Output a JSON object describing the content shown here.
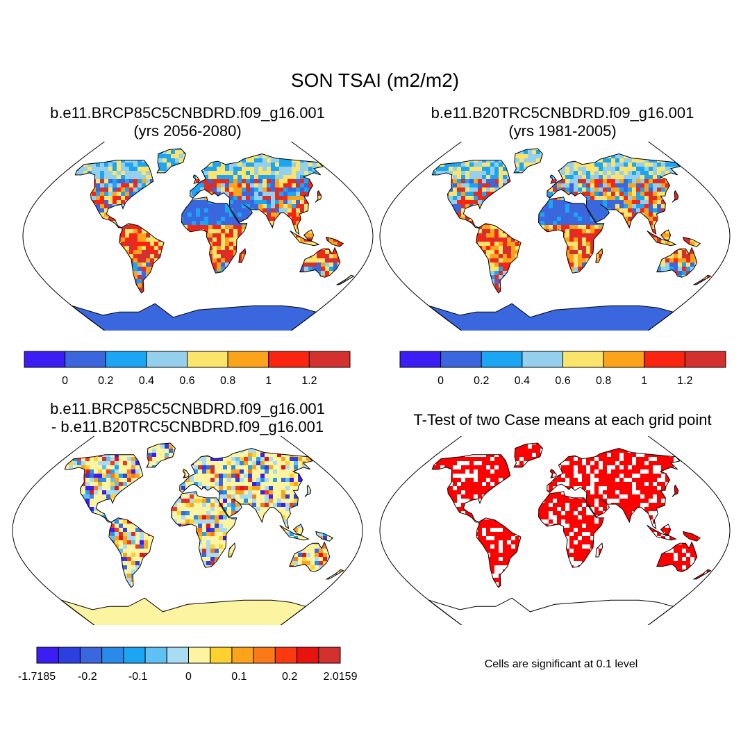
{
  "figure": {
    "title": "SON TSAI (m2/m2)"
  },
  "panels": [
    {
      "id": "case",
      "title_line1": "b.e11.BRCP85C5CNBDRD.f09_g16.001",
      "title_line2": "(yrs 2056-2080)",
      "style": "field"
    },
    {
      "id": "control",
      "title_line1": "b.e11.B20TRC5CNBDRD.f09_g16.001",
      "title_line2": "(yrs 1981-2005)",
      "style": "field"
    },
    {
      "id": "difference",
      "title_line1": "b.e11.BRCP85C5CNBDRD.f09_g16.001",
      "title_line2": "- b.e11.B20TRC5CNBDRD.f09_g16.001",
      "style": "diff"
    },
    {
      "id": "ttest",
      "title_line1": "T-Test of two Case means at each grid point",
      "title_line2": "",
      "style": "sig",
      "note": "Cells are significant at 0.1 level"
    }
  ],
  "colorbars": {
    "field": {
      "colors": [
        "#3c1ef5",
        "#3a67dd",
        "#1ba5f3",
        "#94d0ee",
        "#fbe46b",
        "#fba31b",
        "#fb2411",
        "#d3302e"
      ],
      "labels": [
        "0",
        "0.2",
        "0.4",
        "0.6",
        "0.8",
        "1",
        "1.2"
      ]
    },
    "diff": {
      "colors": [
        "#3c1ef5",
        "#2c3fe0",
        "#3a67dd",
        "#2a8ae9",
        "#1ba5f3",
        "#5ec0f3",
        "#a9dbf3",
        "#fdf4a2",
        "#fdd22e",
        "#fba31b",
        "#fb7a18",
        "#fb3a12",
        "#e8120f",
        "#d3302e"
      ],
      "labels": [
        "-1.7185",
        "-0.2",
        "-0.1",
        "0",
        "0.1",
        "0.2",
        "2.0159"
      ]
    }
  },
  "colors": {
    "ocean": "#ffffff",
    "coastline": "#000000",
    "significant": "#ff0000",
    "antarctica_field": "#3a67dd",
    "antarctica_diff": "#fdf4a2"
  }
}
